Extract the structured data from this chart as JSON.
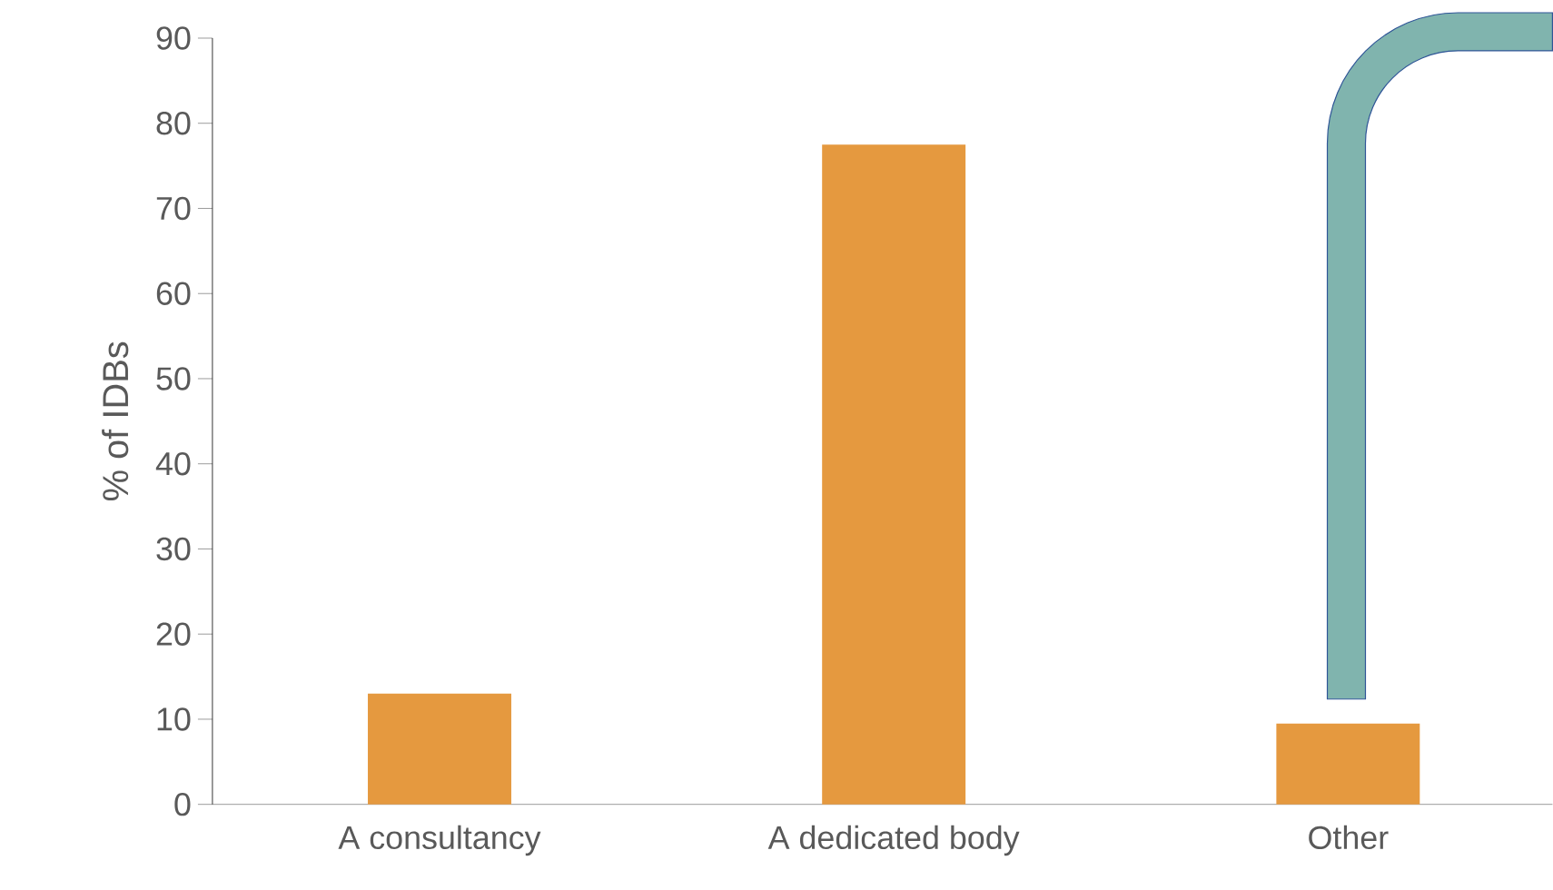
{
  "chart_data": {
    "type": "bar",
    "ylabel": "% of IDBs",
    "categories": [
      "A consultancy",
      "A dedicated body",
      "Other"
    ],
    "values": [
      13,
      77.5,
      9.5
    ],
    "color": "#e5993f",
    "ylim": [
      0,
      90
    ],
    "yticks": [
      0,
      10,
      20,
      30,
      40,
      50,
      60,
      70,
      80,
      90
    ],
    "grid": false
  }
}
